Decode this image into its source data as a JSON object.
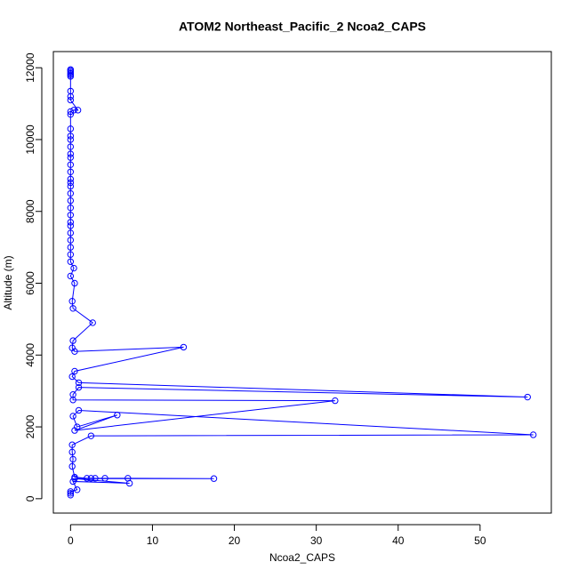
{
  "chart_data": {
    "type": "line",
    "title": "ATOM2 Northeast_Pacific_2 Ncoa2_CAPS",
    "x_label": "Ncoa2_CAPS",
    "y_label": "Altitude (m)",
    "color": "#0000ff",
    "xlim": [
      -2.1,
      58.7
    ],
    "ylim": [
      -400,
      12450
    ],
    "xticks": [
      0,
      10,
      20,
      30,
      40,
      50
    ],
    "yticks": [
      0,
      2000,
      4000,
      6000,
      8000,
      10000,
      12000
    ],
    "x": [
      0,
      0,
      0,
      0,
      0,
      0,
      0,
      0,
      0,
      0.9,
      0.4,
      0,
      0,
      0,
      0,
      0,
      0,
      0,
      0,
      0,
      0,
      0,
      0,
      0,
      0,
      0,
      0,
      0,
      0,
      0,
      0,
      0,
      0,
      0,
      0,
      0.4,
      0,
      0.5,
      0.2,
      0.3,
      2.7,
      0.3,
      0.2,
      0.5,
      13.8,
      0.5,
      0.2,
      1,
      55.8,
      1,
      0.3,
      0.3,
      32.3,
      0.5,
      5.7,
      0.8,
      0.3,
      1,
      56.5,
      2.5,
      0.2,
      0.2,
      0.3,
      0.2,
      0.5,
      2,
      2.5,
      3,
      4.2,
      7,
      17.5,
      0.5,
      7.2,
      0.3,
      0.8,
      0,
      0,
      0
    ],
    "values": [
      11950,
      11920,
      11880,
      11840,
      11800,
      11760,
      11350,
      11200,
      11100,
      10820,
      10820,
      10780,
      10700,
      10300,
      10100,
      10000,
      9800,
      9600,
      9500,
      9300,
      9100,
      8900,
      8800,
      8700,
      8500,
      8300,
      8100,
      7900,
      7700,
      7600,
      7400,
      7200,
      7000,
      6800,
      6600,
      6420,
      6200,
      6000,
      5500,
      5300,
      4900,
      4400,
      4200,
      4100,
      4220,
      3550,
      3400,
      3230,
      2830,
      3100,
      2900,
      2750,
      2730,
      1900,
      2330,
      2000,
      2300,
      2460,
      1780,
      1750,
      1500,
      1300,
      1100,
      900,
      600,
      570,
      570,
      570,
      570,
      570,
      560,
      560,
      430,
      480,
      250,
      200,
      150,
      100
    ]
  }
}
